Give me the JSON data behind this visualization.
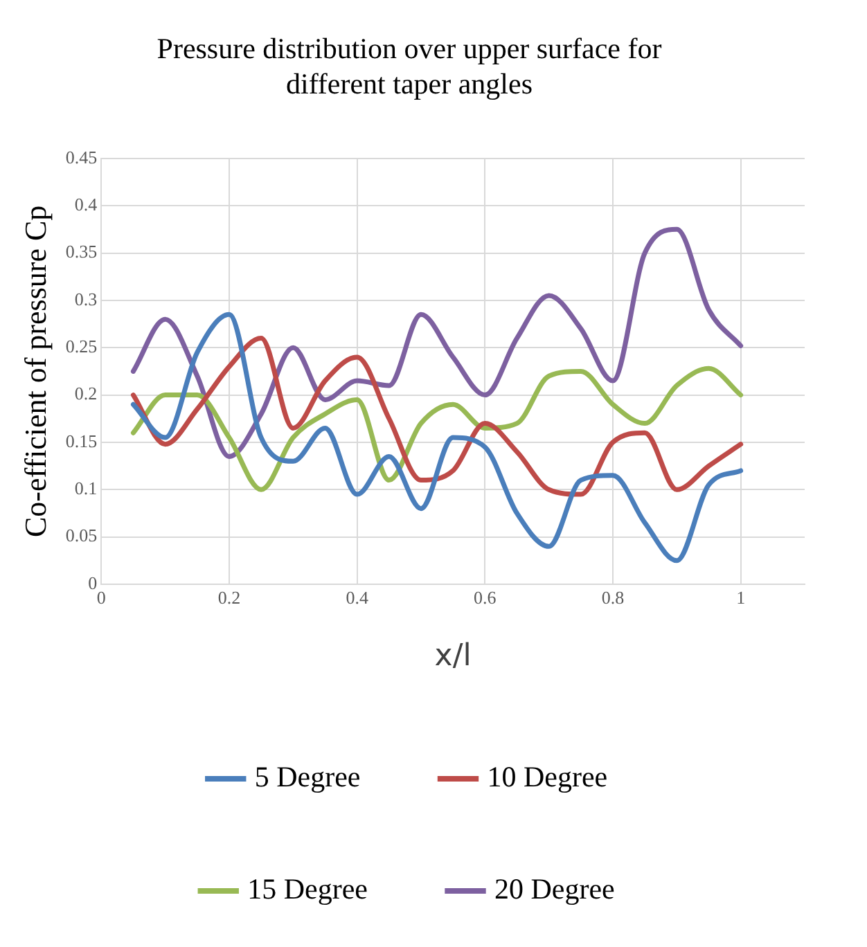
{
  "chart_data": {
    "type": "line",
    "title": "Pressure distribution over upper surface for different taper angles",
    "xlabel": "x/l",
    "ylabel": "Co-efficient of pressure Cp",
    "x": [
      0.05,
      0.1,
      0.15,
      0.2,
      0.25,
      0.3,
      0.35,
      0.4,
      0.45,
      0.5,
      0.55,
      0.6,
      0.65,
      0.7,
      0.75,
      0.8,
      0.85,
      0.9,
      0.95,
      1.0
    ],
    "series": [
      {
        "name": "5 Degree",
        "color": "#4a7ebb",
        "values": [
          0.19,
          0.155,
          0.245,
          0.285,
          0.155,
          0.13,
          0.165,
          0.095,
          0.135,
          0.08,
          0.155,
          0.145,
          0.075,
          0.04,
          0.11,
          0.115,
          0.065,
          0.025,
          0.105,
          0.12
        ]
      },
      {
        "name": "10 Degree",
        "color": "#be4b48",
        "values": [
          0.2,
          0.148,
          0.185,
          0.23,
          0.26,
          0.165,
          0.215,
          0.24,
          0.175,
          0.11,
          0.12,
          0.17,
          0.14,
          0.1,
          0.095,
          0.15,
          0.16,
          0.1,
          0.125,
          0.148
        ]
      },
      {
        "name": "15 Degree",
        "color": "#98b954",
        "values": [
          0.16,
          0.2,
          0.2,
          0.155,
          0.1,
          0.155,
          0.18,
          0.195,
          0.11,
          0.17,
          0.19,
          0.165,
          0.17,
          0.22,
          0.225,
          0.19,
          0.17,
          0.21,
          0.228,
          0.2
        ]
      },
      {
        "name": "20 Degree",
        "color": "#7d60a0",
        "values": [
          0.225,
          0.28,
          0.22,
          0.135,
          0.18,
          0.25,
          0.195,
          0.215,
          0.21,
          0.285,
          0.24,
          0.2,
          0.26,
          0.305,
          0.27,
          0.215,
          0.35,
          0.375,
          0.29,
          0.252
        ]
      }
    ],
    "xlim": [
      0,
      1.1
    ],
    "xticks": [
      0,
      0.2,
      0.4,
      0.6,
      0.8,
      1
    ],
    "ylim": [
      0,
      0.45
    ],
    "yticks": [
      0,
      0.05,
      0.1,
      0.15,
      0.2,
      0.25,
      0.3,
      0.35,
      0.4,
      0.45
    ],
    "grid": true,
    "legend": "bottom",
    "marker": "none",
    "line_style": "solid"
  }
}
